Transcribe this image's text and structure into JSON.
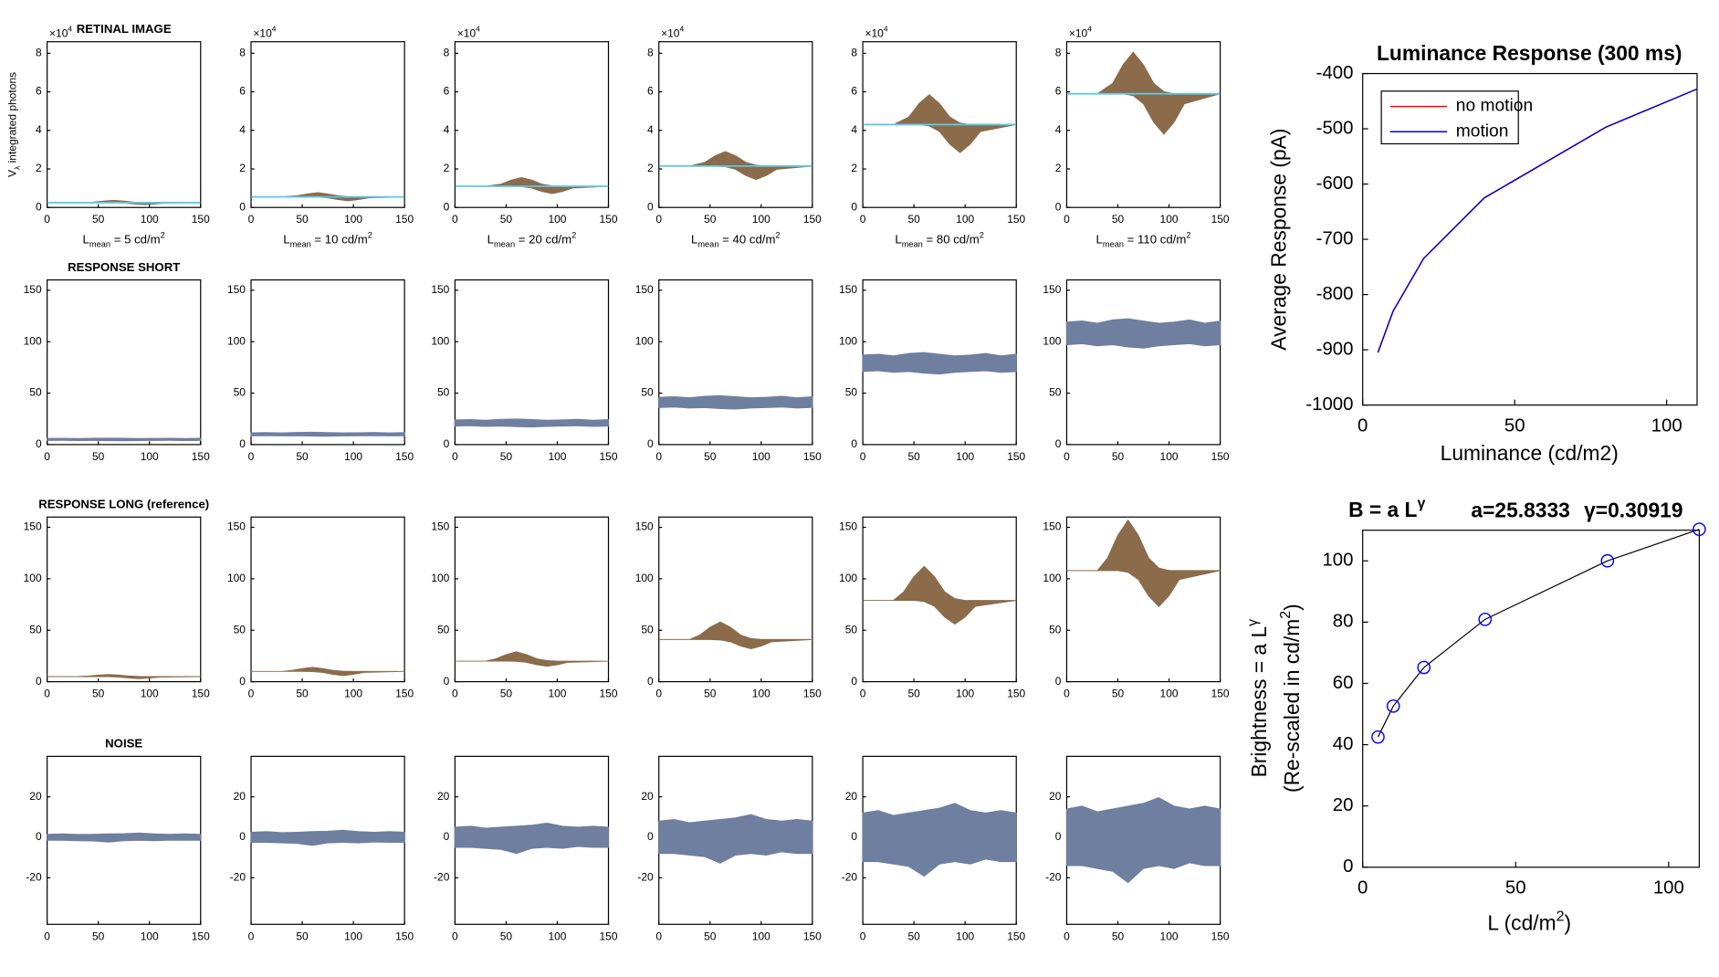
{
  "chart_data": [
    {
      "type": "envelope",
      "title": "RETINAL IMAGE",
      "y_exponent": [
        "×10",
        "4"
      ],
      "ylabel": [
        "V",
        "λ",
        " integrated photons"
      ],
      "x": [
        0,
        30,
        45,
        55,
        65,
        75,
        85,
        95,
        105,
        115,
        150
      ],
      "xlim": [
        0,
        150
      ],
      "xticks": [
        0,
        50,
        100,
        150
      ],
      "ylim": [
        0,
        8.6
      ],
      "yticks": [
        0,
        2,
        4,
        6,
        8
      ],
      "fill_color": "#8b6b4a",
      "baseline_color": "#5bc8ea",
      "panels": [
        {
          "xlabel": [
            "L",
            "mean",
            " = 5 cd/m",
            "2"
          ],
          "baseline": 0.25,
          "upper": [
            0.25,
            0.25,
            0.28,
            0.33,
            0.37,
            0.33,
            0.28,
            0.26,
            0.25,
            0.25,
            0.25
          ],
          "lower": [
            0.25,
            0.25,
            0.25,
            0.25,
            0.25,
            0.23,
            0.18,
            0.15,
            0.18,
            0.23,
            0.25
          ]
        },
        {
          "xlabel": [
            "L",
            "mean",
            " = 10 cd/m",
            "2"
          ],
          "baseline": 0.55,
          "upper": [
            0.55,
            0.55,
            0.61,
            0.7,
            0.77,
            0.7,
            0.61,
            0.56,
            0.55,
            0.55,
            0.55
          ],
          "lower": [
            0.55,
            0.55,
            0.55,
            0.55,
            0.54,
            0.5,
            0.41,
            0.35,
            0.41,
            0.5,
            0.55
          ]
        },
        {
          "xlabel": [
            "L",
            "mean",
            " = 20 cd/m",
            "2"
          ],
          "baseline": 1.1,
          "upper": [
            1.1,
            1.1,
            1.21,
            1.42,
            1.55,
            1.42,
            1.21,
            1.12,
            1.1,
            1.1,
            1.1
          ],
          "lower": [
            1.1,
            1.1,
            1.1,
            1.1,
            1.08,
            1.01,
            0.83,
            0.72,
            0.83,
            1.01,
            1.1
          ]
        },
        {
          "xlabel": [
            "L",
            "mean",
            " = 40 cd/m",
            "2"
          ],
          "baseline": 2.15,
          "upper": [
            2.15,
            2.15,
            2.34,
            2.68,
            2.9,
            2.68,
            2.34,
            2.19,
            2.15,
            2.15,
            2.15
          ],
          "lower": [
            2.15,
            2.15,
            2.15,
            2.15,
            2.12,
            1.98,
            1.66,
            1.45,
            1.66,
            1.98,
            2.15
          ]
        },
        {
          "xlabel": [
            "L",
            "mean",
            " = 80 cd/m",
            "2"
          ],
          "baseline": 4.3,
          "upper": [
            4.3,
            4.3,
            4.69,
            5.39,
            5.85,
            5.39,
            4.69,
            4.38,
            4.3,
            4.3,
            4.3
          ],
          "lower": [
            4.3,
            4.3,
            4.3,
            4.3,
            4.23,
            3.94,
            3.29,
            2.85,
            3.29,
            3.94,
            4.3
          ]
        },
        {
          "xlabel": [
            "L",
            "mean",
            " = 110 cd/m",
            "2"
          ],
          "baseline": 5.9,
          "upper": [
            5.9,
            5.9,
            6.44,
            7.4,
            8.05,
            7.4,
            6.44,
            6.01,
            5.9,
            5.9,
            5.9
          ],
          "lower": [
            5.9,
            5.9,
            5.9,
            5.9,
            5.8,
            5.38,
            4.43,
            3.8,
            4.43,
            5.38,
            5.9
          ]
        }
      ]
    },
    {
      "type": "envelope",
      "title": "RESPONSE SHORT",
      "x": [
        0,
        15,
        30,
        45,
        60,
        75,
        90,
        105,
        120,
        135,
        150
      ],
      "xlim": [
        0,
        150
      ],
      "xticks": [
        0,
        50,
        100,
        150
      ],
      "ylim": [
        0,
        160
      ],
      "yticks": [
        0,
        50,
        100,
        150
      ],
      "fill_color": "#6f7fa0",
      "panels": [
        {
          "upper": [
            6,
            6.1,
            5.9,
            6.2,
            6.3,
            6.1,
            5.9,
            6,
            6.2,
            5.9,
            6.1
          ],
          "lower": [
            4,
            4.1,
            3.9,
            4,
            3.8,
            3.7,
            3.9,
            4,
            4.1,
            3.9,
            4
          ]
        },
        {
          "upper": [
            11.5,
            11.7,
            11.4,
            11.8,
            12,
            11.7,
            11.4,
            11.5,
            11.8,
            11.4,
            11.7
          ],
          "lower": [
            8.5,
            8.7,
            8.4,
            8.5,
            8.2,
            8.1,
            8.4,
            8.5,
            8.7,
            8.4,
            8.5
          ]
        },
        {
          "upper": [
            24,
            24.3,
            23.7,
            24.6,
            24.9,
            24.3,
            23.7,
            24,
            24.6,
            23.7,
            24.3
          ],
          "lower": [
            18,
            18.3,
            17.7,
            18,
            17.4,
            17.1,
            17.7,
            18,
            18.3,
            17.7,
            18
          ]
        },
        {
          "upper": [
            46,
            46.5,
            45.5,
            47,
            47.5,
            46.5,
            45.5,
            46,
            47,
            45.5,
            46.5
          ],
          "lower": [
            36,
            36.5,
            35.5,
            36,
            35,
            34.5,
            35.5,
            36,
            36.5,
            35.5,
            36
          ]
        },
        {
          "upper": [
            87,
            87.8,
            86.2,
            88.6,
            89.4,
            87.8,
            86.2,
            87,
            88.6,
            86.2,
            87.8
          ],
          "lower": [
            71,
            71.8,
            70.2,
            71,
            69.4,
            68.6,
            70.2,
            71,
            71.8,
            70.2,
            71
          ]
        },
        {
          "upper": [
            119,
            120.1,
            117.9,
            121.2,
            122.3,
            120.1,
            117.9,
            119,
            121.2,
            117.9,
            120.1
          ],
          "lower": [
            97,
            98.1,
            95.9,
            97,
            94.8,
            93.7,
            95.9,
            97,
            98.1,
            95.9,
            97
          ]
        }
      ]
    },
    {
      "type": "envelope",
      "title": "RESPONSE LONG (reference)",
      "x": [
        0,
        30,
        40,
        50,
        60,
        70,
        80,
        90,
        100,
        110,
        150
      ],
      "xlim": [
        0,
        150
      ],
      "xticks": [
        0,
        50,
        100,
        150
      ],
      "ylim": [
        0,
        160
      ],
      "yticks": [
        0,
        50,
        100,
        150
      ],
      "fill_color": "#8b6b4a",
      "panels": [
        {
          "upper": [
            5,
            5,
            5.5,
            6.4,
            7,
            6.4,
            5.5,
            5.1,
            5,
            5,
            5
          ],
          "lower": [
            5,
            5,
            5,
            5,
            4.9,
            4.5,
            3.6,
            3,
            3.6,
            4.5,
            5
          ]
        },
        {
          "upper": [
            10,
            10,
            11,
            12.8,
            14,
            12.8,
            11,
            10.2,
            10,
            10,
            10
          ],
          "lower": [
            10,
            10,
            10,
            10,
            9.8,
            9,
            7.2,
            6,
            7.2,
            9,
            10
          ]
        },
        {
          "upper": [
            20,
            20,
            22.3,
            26.3,
            29,
            26.3,
            22.3,
            20.5,
            20,
            20,
            20
          ],
          "lower": [
            20,
            20,
            20,
            20,
            19.8,
            18.8,
            16.5,
            15,
            16.5,
            18.8,
            20
          ]
        },
        {
          "upper": [
            41,
            41,
            45.3,
            52.9,
            58,
            52.9,
            45.3,
            41.9,
            41,
            41,
            41
          ],
          "lower": [
            41,
            41,
            41,
            41,
            40.6,
            38.8,
            34.7,
            32,
            34.7,
            38.8,
            41
          ]
        },
        {
          "upper": [
            79,
            79,
            87.3,
            102.1,
            112,
            102.1,
            87.3,
            80.7,
            79,
            79,
            79
          ],
          "lower": [
            79,
            79,
            79,
            79,
            77.9,
            73.3,
            62.9,
            56,
            62.9,
            73.3,
            79
          ]
        },
        {
          "upper": [
            108,
            108,
            120.3,
            142.3,
            157,
            142.3,
            120.3,
            110.5,
            108,
            108,
            108
          ],
          "lower": [
            108,
            108,
            108,
            108,
            106.3,
            99.3,
            83.5,
            73,
            83.5,
            99.3,
            108
          ]
        }
      ]
    },
    {
      "type": "envelope",
      "title": "NOISE",
      "x": [
        0,
        15,
        30,
        45,
        60,
        75,
        90,
        105,
        120,
        135,
        150
      ],
      "xlim": [
        0,
        150
      ],
      "xticks": [
        0,
        50,
        100,
        150
      ],
      "ylim": [
        -43,
        40
      ],
      "yticks": [
        -20,
        0,
        20
      ],
      "fill_color": "#6f7fa0",
      "panels": [
        {
          "upper": [
            1.5,
            1.7,
            1.4,
            1.5,
            1.7,
            1.8,
            2.1,
            1.7,
            1.5,
            1.7,
            1.5
          ],
          "lower": [
            -1.5,
            -1.5,
            -1.7,
            -1.8,
            -2.4,
            -1.7,
            -1.5,
            -1.7,
            -1.4,
            -1.5,
            -1.5
          ]
        },
        {
          "upper": [
            2.5,
            2.8,
            2.3,
            2.5,
            2.8,
            3,
            3.5,
            2.8,
            2.5,
            2.8,
            2.5
          ],
          "lower": [
            -2.5,
            -2.5,
            -2.8,
            -3,
            -4,
            -2.8,
            -2.5,
            -2.8,
            -2.3,
            -2.5,
            -2.5
          ]
        },
        {
          "upper": [
            5,
            5.5,
            4.5,
            5,
            5.5,
            6,
            7,
            5.5,
            5,
            5.5,
            5
          ],
          "lower": [
            -5,
            -5,
            -5.5,
            -6,
            -8,
            -5.5,
            -5,
            -5.5,
            -4.5,
            -5,
            -5
          ]
        },
        {
          "upper": [
            8,
            8.8,
            7.2,
            8,
            8.8,
            9.6,
            11.2,
            8.8,
            8,
            8.8,
            8
          ],
          "lower": [
            -8,
            -8,
            -8.8,
            -9.6,
            -12.8,
            -8.8,
            -8,
            -8.8,
            -7.2,
            -8,
            -8
          ]
        },
        {
          "upper": [
            12,
            13.2,
            10.8,
            12,
            13.2,
            14.4,
            16.8,
            13.2,
            12,
            13.2,
            12
          ],
          "lower": [
            -12,
            -12,
            -13.2,
            -14.4,
            -19.2,
            -13.2,
            -12,
            -13.2,
            -10.8,
            -12,
            -12
          ]
        },
        {
          "upper": [
            14,
            15.4,
            12.6,
            14,
            15.4,
            16.8,
            19.6,
            15.4,
            14,
            15.4,
            14
          ],
          "lower": [
            -14,
            -14,
            -15.4,
            -16.8,
            -22.4,
            -15.4,
            -14,
            -15.4,
            -12.6,
            -14,
            -14
          ]
        }
      ]
    },
    {
      "type": "line",
      "title": "Luminance Response (300 ms)",
      "xlabel": "Luminance (cd/m2)",
      "ylabel": "Average Response (pA)",
      "x": [
        5,
        10,
        20,
        40,
        80,
        110
      ],
      "xlim": [
        0,
        110
      ],
      "xticks": [
        0,
        50,
        100
      ],
      "ylim": [
        -1000,
        -400
      ],
      "yticks": [
        -1000,
        -900,
        -800,
        -700,
        -600,
        -500,
        -400
      ],
      "legend": "upper left",
      "series": [
        {
          "name": "no motion",
          "color": "#ff0000",
          "values": [
            -905,
            -830,
            -735,
            -625,
            -497,
            -428
          ]
        },
        {
          "name": "motion",
          "color": "#0000cc",
          "values": [
            -905,
            -830,
            -735,
            -625,
            -497,
            -428
          ]
        }
      ]
    },
    {
      "type": "scatter",
      "title": [
        "B = a L",
        "γ"
      ],
      "fit_a": "a=25.8333",
      "fit_gamma": "γ=0.30919",
      "ylabel": [
        [
          "Brightness = a L",
          "γ"
        ],
        [
          "(Re-scaled in cd/m",
          "2",
          ")"
        ]
      ],
      "xlabel": [
        "L (cd/m",
        "2",
        ")"
      ],
      "x": [
        5,
        10,
        20,
        40,
        80,
        110
      ],
      "values": [
        42.5,
        52.6,
        65.2,
        80.9,
        100,
        110.3
      ],
      "color": "#0000ff",
      "line": true,
      "line_color": "#000000",
      "xlim": [
        0,
        110
      ],
      "xticks": [
        0,
        50,
        100
      ],
      "ylim": [
        0,
        110
      ],
      "yticks": [
        0,
        20,
        40,
        60,
        80,
        100
      ]
    }
  ]
}
